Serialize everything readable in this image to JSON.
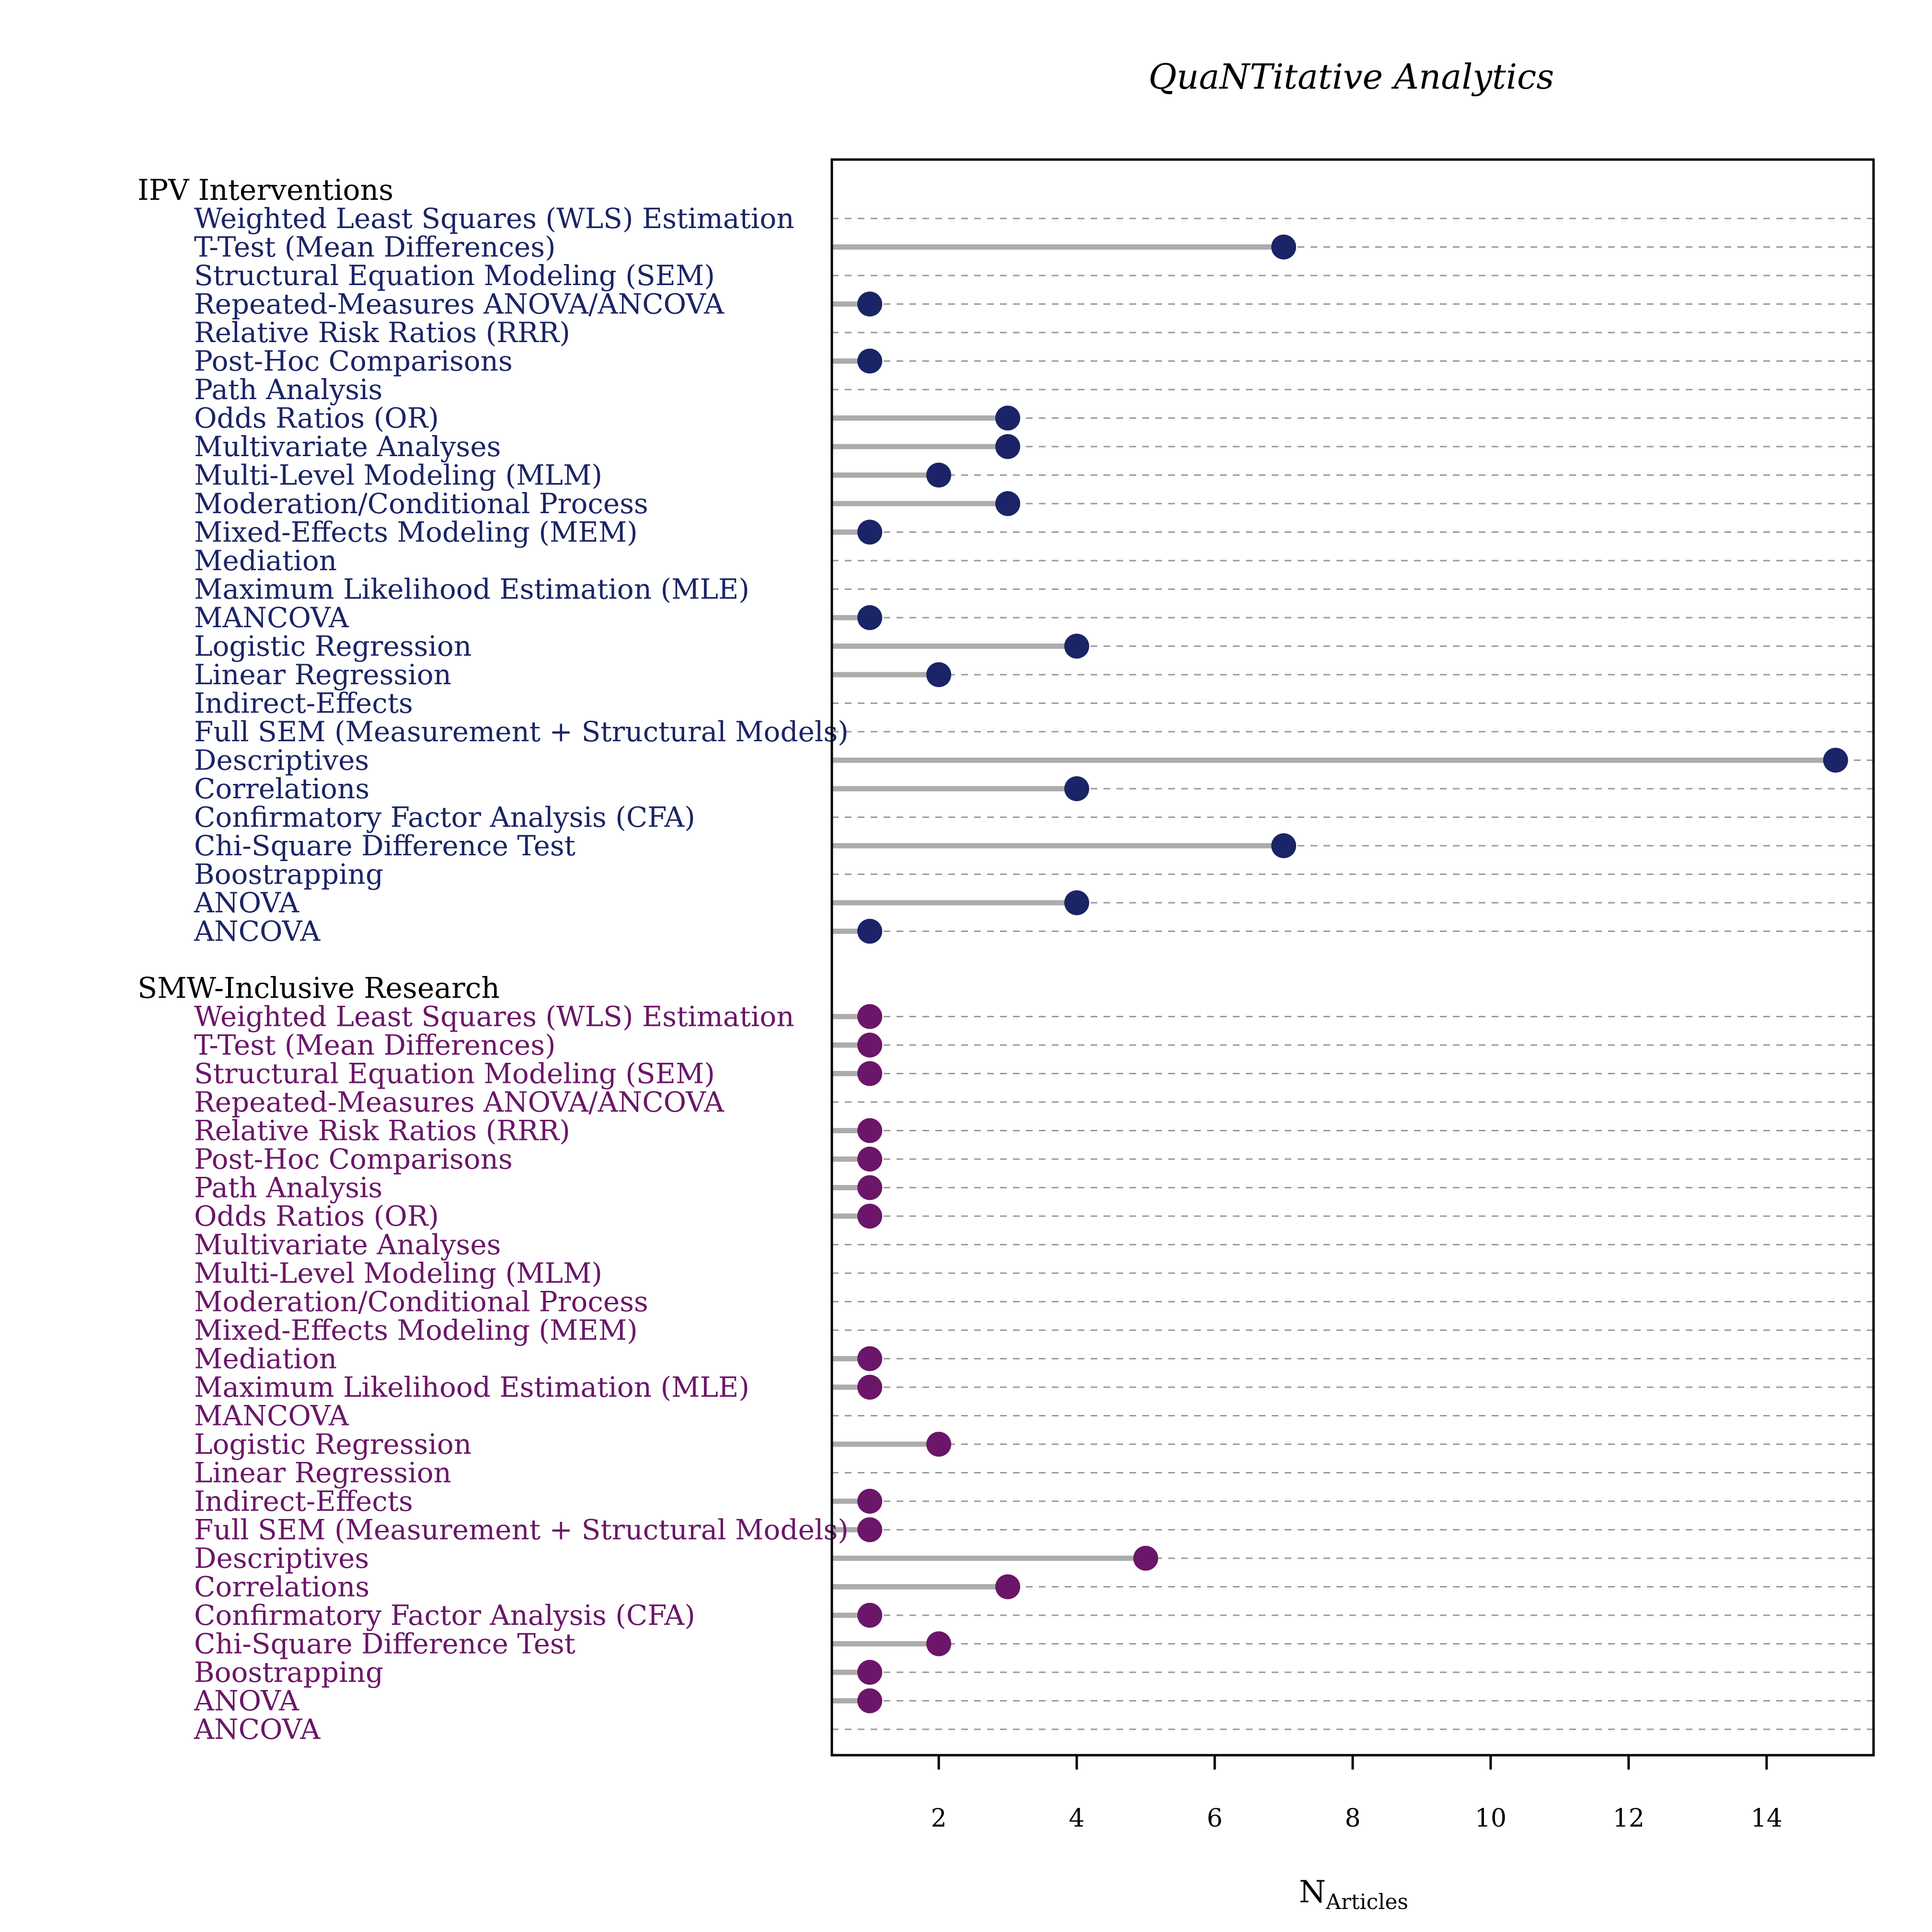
{
  "chart_data": {
    "type": "dot",
    "title": "QuaNTitative Analytics",
    "xlabel": {
      "main": "N",
      "subscript": "Articles"
    },
    "xlim": [
      0.45,
      15.55
    ],
    "xticks": [
      2,
      4,
      6,
      8,
      10,
      12,
      14
    ],
    "grid": "dashed horizontal",
    "groups": [
      {
        "name": "IPV Interventions",
        "color": "#1a2466",
        "items": [
          {
            "label": "Weighted Least Squares (WLS) Estimation",
            "value": 0
          },
          {
            "label": "T-Test (Mean Differences)",
            "value": 7
          },
          {
            "label": "Structural Equation Modeling (SEM)",
            "value": 0
          },
          {
            "label": "Repeated-Measures ANOVA/ANCOVA",
            "value": 1
          },
          {
            "label": "Relative Risk Ratios (RRR)",
            "value": 0
          },
          {
            "label": "Post-Hoc Comparisons",
            "value": 1
          },
          {
            "label": "Path Analysis",
            "value": 0
          },
          {
            "label": "Odds Ratios (OR)",
            "value": 3
          },
          {
            "label": "Multivariate Analyses",
            "value": 3
          },
          {
            "label": "Multi-Level Modeling (MLM)",
            "value": 2
          },
          {
            "label": "Moderation/Conditional Process",
            "value": 3
          },
          {
            "label": "Mixed-Effects Modeling (MEM)",
            "value": 1
          },
          {
            "label": "Mediation",
            "value": 0
          },
          {
            "label": "Maximum Likelihood Estimation (MLE)",
            "value": 0
          },
          {
            "label": "MANCOVA",
            "value": 1
          },
          {
            "label": "Logistic Regression",
            "value": 4
          },
          {
            "label": "Linear Regression",
            "value": 2
          },
          {
            "label": "Indirect-Effects",
            "value": 0
          },
          {
            "label": "Full SEM (Measurement + Structural Models)",
            "value": 0
          },
          {
            "label": "Descriptives",
            "value": 15
          },
          {
            "label": "Correlations",
            "value": 4
          },
          {
            "label": "Confirmatory Factor Analysis (CFA)",
            "value": 0
          },
          {
            "label": "Chi-Square Difference Test",
            "value": 7
          },
          {
            "label": "Boostrapping",
            "value": 0
          },
          {
            "label": "ANOVA",
            "value": 4
          },
          {
            "label": "ANCOVA",
            "value": 1
          }
        ]
      },
      {
        "name": "SMW-Inclusive Research",
        "color": "#6b1668",
        "items": [
          {
            "label": "Weighted Least Squares (WLS) Estimation",
            "value": 1
          },
          {
            "label": "T-Test (Mean Differences)",
            "value": 1
          },
          {
            "label": "Structural Equation Modeling (SEM)",
            "value": 1
          },
          {
            "label": "Repeated-Measures ANOVA/ANCOVA",
            "value": 0
          },
          {
            "label": "Relative Risk Ratios (RRR)",
            "value": 1
          },
          {
            "label": "Post-Hoc Comparisons",
            "value": 1
          },
          {
            "label": "Path Analysis",
            "value": 1
          },
          {
            "label": "Odds Ratios (OR)",
            "value": 1
          },
          {
            "label": "Multivariate Analyses",
            "value": 0
          },
          {
            "label": "Multi-Level Modeling (MLM)",
            "value": 0
          },
          {
            "label": "Moderation/Conditional Process",
            "value": 0
          },
          {
            "label": "Mixed-Effects Modeling (MEM)",
            "value": 0
          },
          {
            "label": "Mediation",
            "value": 1
          },
          {
            "label": "Maximum Likelihood Estimation (MLE)",
            "value": 1
          },
          {
            "label": "MANCOVA",
            "value": 0
          },
          {
            "label": "Logistic Regression",
            "value": 2
          },
          {
            "label": "Linear Regression",
            "value": 0
          },
          {
            "label": "Indirect-Effects",
            "value": 1
          },
          {
            "label": "Full SEM (Measurement + Structural Models)",
            "value": 1
          },
          {
            "label": "Descriptives",
            "value": 5
          },
          {
            "label": "Correlations",
            "value": 3
          },
          {
            "label": "Confirmatory Factor Analysis (CFA)",
            "value": 1
          },
          {
            "label": "Chi-Square Difference Test",
            "value": 2
          },
          {
            "label": "Boostrapping",
            "value": 1
          },
          {
            "label": "ANOVA",
            "value": 1
          },
          {
            "label": "ANCOVA",
            "value": 0
          }
        ]
      }
    ]
  }
}
